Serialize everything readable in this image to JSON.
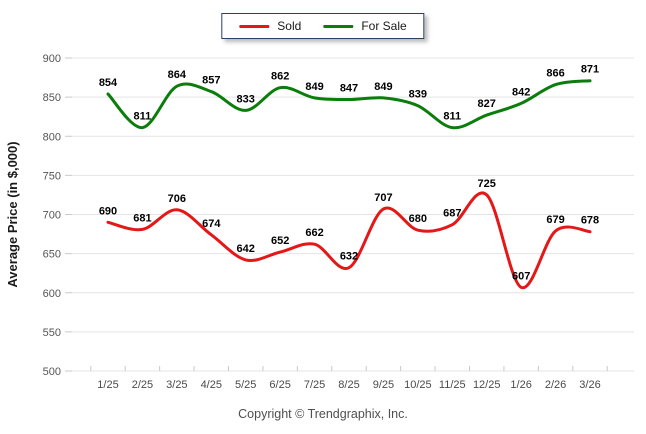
{
  "chart_data": {
    "type": "line",
    "title": "",
    "categories": [
      "1/25",
      "2/25",
      "3/25",
      "4/25",
      "5/25",
      "6/25",
      "7/25",
      "8/25",
      "9/25",
      "10/25",
      "11/25",
      "12/25",
      "1/26",
      "2/26",
      "3/26"
    ],
    "series": [
      {
        "name": "Sold",
        "color": "#e51717",
        "values": [
          690,
          681,
          706,
          674,
          642,
          652,
          662,
          632,
          707,
          680,
          687,
          725,
          607,
          679,
          678
        ]
      },
      {
        "name": "For Sale",
        "color": "#0b7d0b",
        "values": [
          854,
          811,
          864,
          857,
          833,
          862,
          849,
          847,
          849,
          839,
          811,
          827,
          842,
          866,
          871
        ]
      }
    ],
    "xlabel": "",
    "ylabel": "Average Price (in $,000)",
    "ylim": [
      500,
      900
    ],
    "yticks": [
      500,
      550,
      600,
      650,
      700,
      750,
      800,
      850,
      900
    ],
    "grid": "horizontal",
    "legend_position": "top-center",
    "data_labels": true,
    "line_smoothing": "spline"
  },
  "footer": {
    "copyright": "Copyright © Trendgraphix, Inc."
  }
}
